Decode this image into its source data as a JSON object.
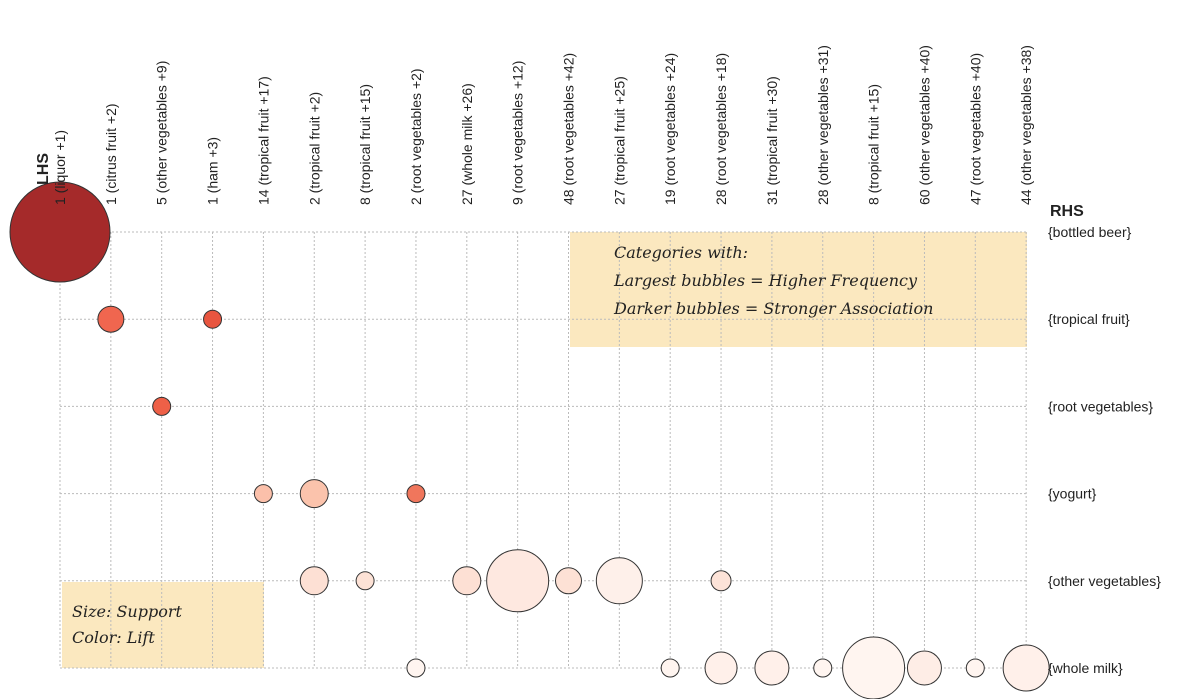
{
  "chart_data": {
    "type": "grouped_matrix",
    "x_label": "LHS",
    "y_label": "RHS",
    "columns": [
      "1 (liquor +1)",
      "1 (citrus fruit +2)",
      "5 (other vegetables +9)",
      "1 (ham +3)",
      "14 (tropical fruit +17)",
      "2 (tropical fruit +2)",
      "8 (tropical fruit +15)",
      "2 (root vegetables +2)",
      "27 (whole milk +26)",
      "9 (root vegetables +12)",
      "48 (root vegetables +42)",
      "27 (tropical fruit +25)",
      "19 (root vegetables +24)",
      "28 (root vegetables +18)",
      "31 (tropical fruit +30)",
      "28 (other vegetables +31)",
      "8 (tropical fruit +15)",
      "60 (other vegetables +40)",
      "47 (root vegetables +40)",
      "44 (other vegetables +38)"
    ],
    "rows": [
      "{bottled beer}",
      "{tropical fruit}",
      "{root vegetables}",
      "{yogurt}",
      "{other vegetables}",
      "{whole milk}"
    ],
    "points": [
      {
        "col": 0,
        "row": 0,
        "size": 5.0,
        "color": "#a52a2a"
      },
      {
        "col": 1,
        "row": 1,
        "size": 1.3,
        "color": "#f0664f"
      },
      {
        "col": 3,
        "row": 1,
        "size": 0.9,
        "color": "#e8553f"
      },
      {
        "col": 2,
        "row": 2,
        "size": 0.9,
        "color": "#ee6047"
      },
      {
        "col": 4,
        "row": 3,
        "size": 0.9,
        "color": "#fbc0aa"
      },
      {
        "col": 5,
        "row": 3,
        "size": 1.4,
        "color": "#fbc3ac"
      },
      {
        "col": 7,
        "row": 3,
        "size": 0.9,
        "color": "#f0765c"
      },
      {
        "col": 5,
        "row": 4,
        "size": 1.4,
        "color": "#fde0d4"
      },
      {
        "col": 6,
        "row": 4,
        "size": 0.9,
        "color": "#fde2d6"
      },
      {
        "col": 8,
        "row": 4,
        "size": 1.4,
        "color": "#fde0d4"
      },
      {
        "col": 9,
        "row": 4,
        "size": 3.1,
        "color": "#fee8e0"
      },
      {
        "col": 10,
        "row": 4,
        "size": 1.3,
        "color": "#fde1d5"
      },
      {
        "col": 11,
        "row": 4,
        "size": 2.3,
        "color": "#fef0ea"
      },
      {
        "col": 13,
        "row": 4,
        "size": 1.0,
        "color": "#fde3d8"
      },
      {
        "col": 7,
        "row": 5,
        "size": 0.9,
        "color": "#fff5f0"
      },
      {
        "col": 12,
        "row": 5,
        "size": 0.9,
        "color": "#fff5f0"
      },
      {
        "col": 13,
        "row": 5,
        "size": 1.6,
        "color": "#fff0ea"
      },
      {
        "col": 14,
        "row": 5,
        "size": 1.7,
        "color": "#fff0ea"
      },
      {
        "col": 15,
        "row": 5,
        "size": 0.9,
        "color": "#fff5f0"
      },
      {
        "col": 16,
        "row": 5,
        "size": 3.1,
        "color": "#fff5f0"
      },
      {
        "col": 17,
        "row": 5,
        "size": 1.7,
        "color": "#feede6"
      },
      {
        "col": 18,
        "row": 5,
        "size": 0.9,
        "color": "#fff5f0"
      },
      {
        "col": 19,
        "row": 5,
        "size": 2.3,
        "color": "#fff0ea"
      }
    ],
    "annotations": [
      "Categories with:",
      "Largest bubbles = Higher Frequency",
      "Darker bubbles = Stronger Association"
    ],
    "legend_notes": [
      "Size: Support",
      "Color: Lift"
    ],
    "grid": true
  }
}
